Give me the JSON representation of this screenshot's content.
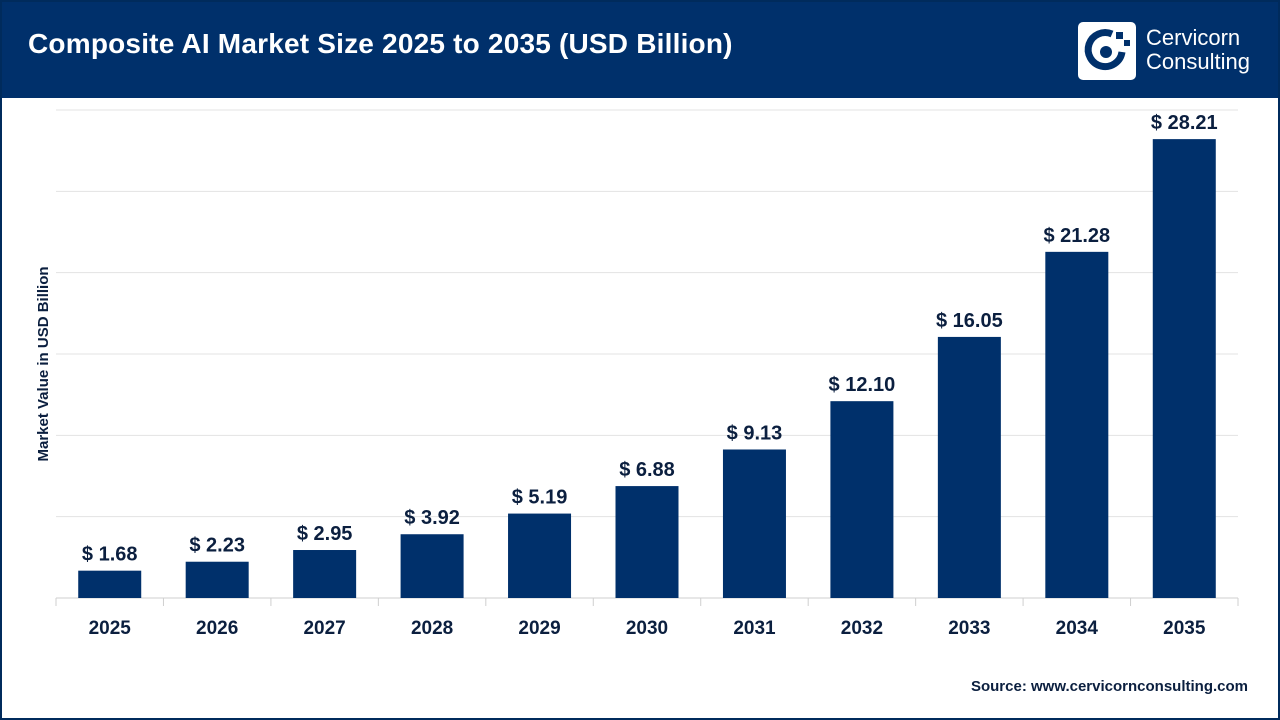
{
  "header": {
    "title": "Composite AI Market Size 2025 to 2035 (USD Billion)",
    "logo_line1": "Cervicorn",
    "logo_line2": "Consulting"
  },
  "colors": {
    "bar": "#00306b",
    "header_bg": "#00306b",
    "grid": "#e3e3e3",
    "text": "#0b1f3f"
  },
  "source": {
    "label": "Source:",
    "url": "www.cervicornconsulting.com"
  },
  "chart_data": {
    "type": "bar",
    "title": "Composite AI Market Size 2025 to 2035 (USD Billion)",
    "xlabel": "",
    "ylabel": "Market Value in USD Billion",
    "categories": [
      "2025",
      "2026",
      "2027",
      "2028",
      "2029",
      "2030",
      "2031",
      "2032",
      "2033",
      "2034",
      "2035"
    ],
    "values": [
      1.68,
      2.23,
      2.95,
      3.92,
      5.19,
      6.88,
      9.13,
      12.1,
      16.05,
      21.28,
      28.21
    ],
    "data_labels": [
      "$ 1.68",
      "$ 2.23",
      "$ 2.95",
      "$ 3.92",
      "$ 5.19",
      "$ 6.88",
      "$ 9.13",
      "$ 12.10",
      "$ 16.05",
      "$ 21.28",
      "$ 28.21"
    ],
    "ylim": [
      0,
      30
    ],
    "grid": true,
    "legend": "none"
  }
}
